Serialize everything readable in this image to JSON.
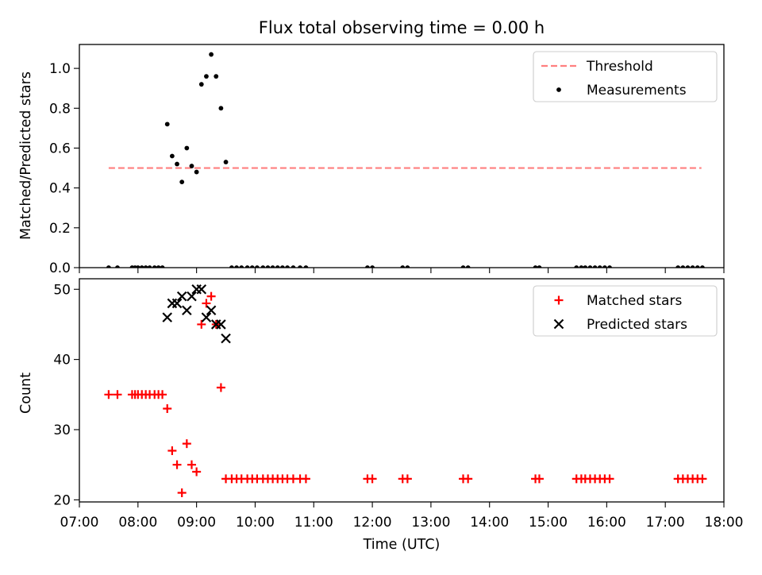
{
  "chart_data": [
    {
      "type": "scatter",
      "title": "Flux total observing time = 0.00 h",
      "xlabel": "",
      "ylabel": "Matched/Predicted stars",
      "xlim": [
        "07:00",
        "18:00"
      ],
      "ylim": [
        0,
        1.12
      ],
      "yticks": [
        "0.0",
        "0.2",
        "0.4",
        "0.6",
        "0.8",
        "1.0"
      ],
      "legend": {
        "placement": "top-right"
      },
      "series": [
        {
          "name": "Threshold",
          "kind": "dashed-line",
          "color": "#ff7f7f",
          "x": [
            "07:30",
            "17:37"
          ],
          "y": [
            0.5,
            0.5
          ]
        },
        {
          "name": "Measurements",
          "kind": "dot",
          "color": "#000000",
          "x": [
            "07:30",
            "07:39",
            "07:54",
            "07:57",
            "08:00",
            "08:04",
            "08:08",
            "08:12",
            "08:17",
            "08:21",
            "08:25",
            "08:30",
            "08:35",
            "08:40",
            "08:45",
            "08:50",
            "08:55",
            "09:00",
            "09:05",
            "09:10",
            "09:15",
            "09:20",
            "09:25",
            "09:30",
            "09:36",
            "09:41",
            "09:46",
            "09:52",
            "09:57",
            "10:02",
            "10:08",
            "10:13",
            "10:18",
            "10:23",
            "10:28",
            "10:33",
            "10:39",
            "10:46",
            "10:52",
            "11:55",
            "12:00",
            "12:31",
            "12:36",
            "13:33",
            "13:38",
            "14:47",
            "14:51",
            "15:29",
            "15:34",
            "15:38",
            "15:43",
            "15:48",
            "15:53",
            "15:58",
            "16:03",
            "17:13",
            "17:18",
            "17:23",
            "17:28",
            "17:33",
            "17:38"
          ],
          "y": [
            0,
            0,
            0,
            0,
            0,
            0,
            0,
            0,
            0,
            0,
            0,
            0.72,
            0.56,
            0.52,
            0.43,
            0.6,
            0.51,
            0.48,
            0.92,
            0.96,
            1.07,
            0.96,
            0.8,
            0.53,
            0,
            0,
            0,
            0,
            0,
            0,
            0,
            0,
            0,
            0,
            0,
            0,
            0,
            0,
            0,
            0,
            0,
            0,
            0,
            0,
            0,
            0,
            0,
            0,
            0,
            0,
            0,
            0,
            0,
            0,
            0,
            0,
            0,
            0,
            0,
            0,
            0
          ]
        }
      ]
    },
    {
      "type": "scatter",
      "title": "",
      "xlabel": "Time (UTC)",
      "ylabel": "Count",
      "xlim": [
        "07:00",
        "18:00"
      ],
      "ylim": [
        19.7,
        51.5
      ],
      "xticks": [
        "07:00",
        "08:00",
        "09:00",
        "10:00",
        "11:00",
        "12:00",
        "13:00",
        "14:00",
        "15:00",
        "16:00",
        "17:00",
        "18:00"
      ],
      "yticks": [
        "20",
        "30",
        "40",
        "50"
      ],
      "legend": {
        "placement": "top-right"
      },
      "series": [
        {
          "name": "Matched stars",
          "kind": "plus",
          "color": "#ff0000",
          "x": [
            "07:30",
            "07:39",
            "07:54",
            "07:57",
            "08:00",
            "08:04",
            "08:08",
            "08:12",
            "08:17",
            "08:21",
            "08:25",
            "08:30",
            "08:35",
            "08:40",
            "08:45",
            "08:50",
            "08:55",
            "09:00",
            "09:05",
            "09:10",
            "09:15",
            "09:20",
            "09:25",
            "09:30",
            "09:36",
            "09:41",
            "09:46",
            "09:52",
            "09:57",
            "10:02",
            "10:08",
            "10:13",
            "10:18",
            "10:23",
            "10:28",
            "10:33",
            "10:39",
            "10:46",
            "10:52",
            "11:55",
            "12:00",
            "12:31",
            "12:36",
            "13:33",
            "13:38",
            "14:47",
            "14:51",
            "15:29",
            "15:34",
            "15:38",
            "15:43",
            "15:48",
            "15:53",
            "15:58",
            "16:03",
            "17:13",
            "17:18",
            "17:23",
            "17:28",
            "17:33",
            "17:38"
          ],
          "y": [
            35,
            35,
            35,
            35,
            35,
            35,
            35,
            35,
            35,
            35,
            35,
            33,
            27,
            25,
            21,
            28,
            25,
            24,
            45,
            48,
            49,
            45,
            36,
            23,
            23,
            23,
            23,
            23,
            23,
            23,
            23,
            23,
            23,
            23,
            23,
            23,
            23,
            23,
            23,
            23,
            23,
            23,
            23,
            23,
            23,
            23,
            23,
            23,
            23,
            23,
            23,
            23,
            23,
            23,
            23,
            23,
            23,
            23,
            23,
            23,
            23
          ]
        },
        {
          "name": "Predicted stars",
          "kind": "x",
          "color": "#000000",
          "x": [
            "08:30",
            "08:35",
            "08:40",
            "08:45",
            "08:50",
            "08:55",
            "09:00",
            "09:05",
            "09:10",
            "09:15",
            "09:20",
            "09:25",
            "09:30"
          ],
          "y": [
            46,
            48,
            48,
            49,
            47,
            49,
            50,
            50,
            46,
            47,
            45,
            45,
            43
          ]
        }
      ]
    }
  ]
}
